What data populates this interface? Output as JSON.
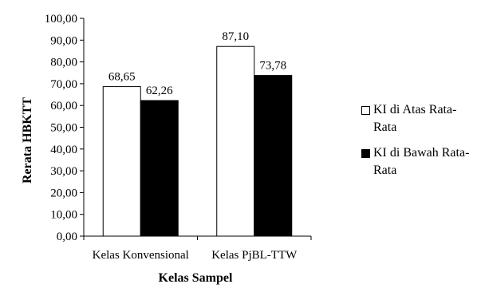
{
  "chart_data": {
    "type": "bar",
    "categories": [
      "Kelas Konvensional",
      "Kelas PjBL-TTW"
    ],
    "series": [
      {
        "name": "KI di Atas Rata-Rata",
        "values": [
          68.65,
          87.1
        ],
        "labels": [
          "68,65",
          "87,10"
        ],
        "color": "#ffffff"
      },
      {
        "name": "KI di Bawah Rata-Rata",
        "values": [
          62.26,
          73.78
        ],
        "labels": [
          "62,26",
          "73,78"
        ],
        "color": "#000000"
      }
    ],
    "xlabel": "Kelas Sampel",
    "ylabel": "Rerata HBKTT",
    "ylim": [
      0,
      100
    ],
    "yticks": [
      0,
      10,
      20,
      30,
      40,
      50,
      60,
      70,
      80,
      90,
      100
    ],
    "ytick_labels": [
      "0,00",
      "10,00",
      "20,00",
      "30,00",
      "40,00",
      "50,00",
      "60,00",
      "70,00",
      "80,00",
      "90,00",
      "100,00"
    ],
    "legend_position": "right",
    "grid": false
  }
}
